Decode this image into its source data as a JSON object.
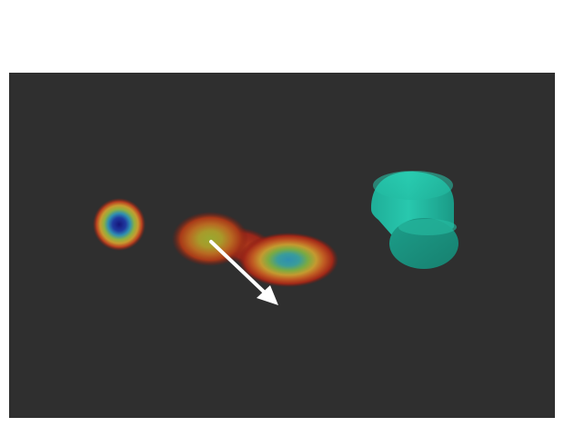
{
  "scene": {
    "background_color": "#2f2f2f",
    "page_color": "#ffffff",
    "colormap": [
      "#1a1a7a",
      "#2a5fb0",
      "#30a0a0",
      "#7fb040",
      "#c0a030",
      "#b04020",
      "#902010"
    ],
    "object_color": "#22c4aa",
    "arrow_color": "#ffffff",
    "icons": {
      "arrow": "direction-arrow-icon",
      "cup": "cup-object-icon"
    }
  }
}
